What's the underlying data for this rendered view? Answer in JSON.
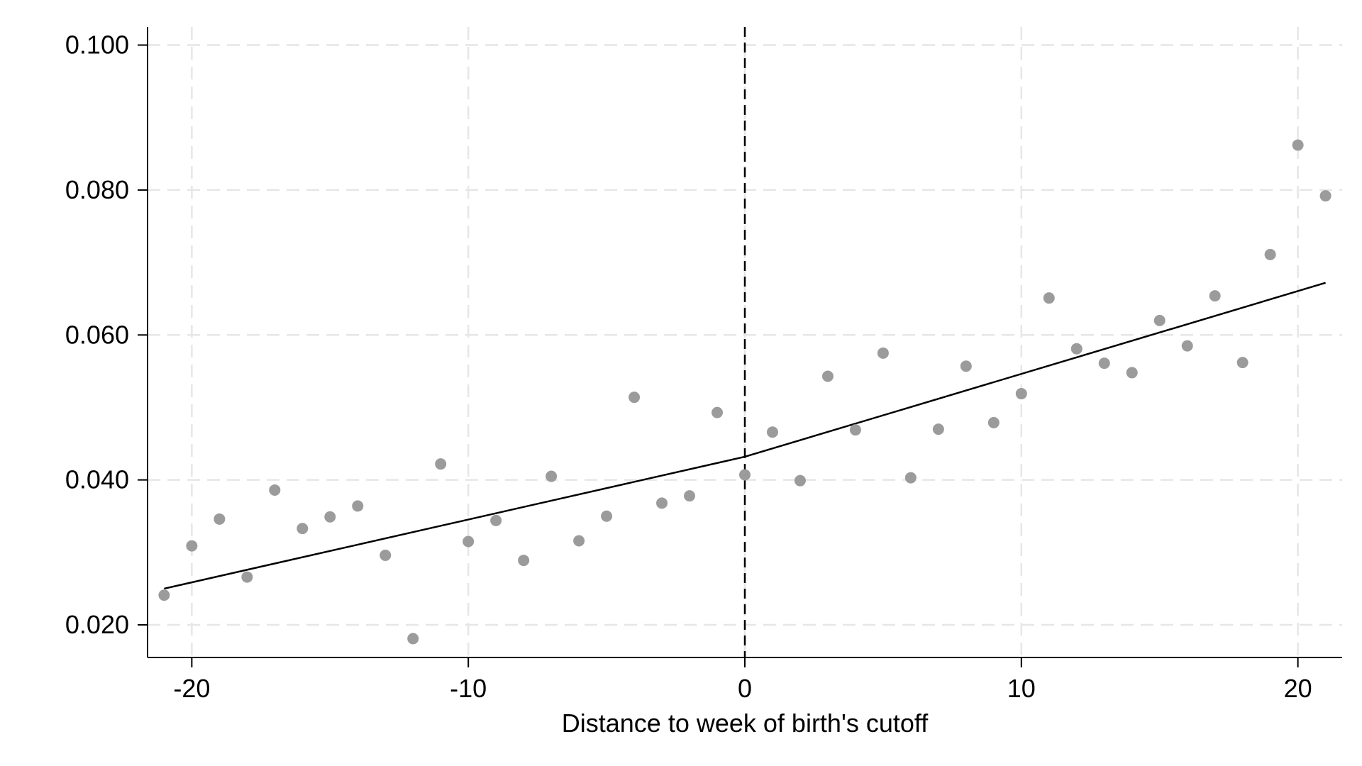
{
  "chart_data": {
    "type": "scatter",
    "title": "",
    "xlabel": "Distance to week of birth's cutoff",
    "ylabel": "",
    "xlim": [
      -21.6,
      21.6
    ],
    "ylim": [
      0.0155,
      0.1025
    ],
    "x_ticks": [
      -20,
      -10,
      0,
      10,
      20
    ],
    "x_tick_labels": [
      "-20",
      "-10",
      "0",
      "10",
      "20"
    ],
    "y_ticks": [
      0.02,
      0.04,
      0.06,
      0.08,
      0.1
    ],
    "y_tick_labels": [
      "0.020",
      "0.040",
      "0.060",
      "0.080",
      "0.100"
    ],
    "grid": true,
    "cutoff_line_x": 0,
    "colors": {
      "points": "#9b9b9b",
      "fit": "#000000",
      "grid": "#e6e6e6",
      "cutoff": "#000000"
    },
    "series": [
      {
        "type": "scatter",
        "x": [
          -21,
          -20,
          -19,
          -18,
          -17,
          -16,
          -15,
          -14,
          -13,
          -12,
          -11,
          -10,
          -9,
          -8,
          -7,
          -6,
          -5,
          -4,
          -3,
          -2,
          -1,
          0,
          1,
          2,
          3,
          4,
          5,
          6,
          7,
          8,
          9,
          10,
          11,
          12,
          13,
          14,
          15,
          16,
          17,
          18,
          19,
          20,
          21
        ],
        "y": [
          0.0241,
          0.0309,
          0.0346,
          0.0266,
          0.0386,
          0.0333,
          0.0349,
          0.0364,
          0.0296,
          0.0181,
          0.0422,
          0.0315,
          0.0344,
          0.0289,
          0.0405,
          0.0316,
          0.035,
          0.0514,
          0.0368,
          0.0378,
          0.0493,
          0.0407,
          0.0466,
          0.0399,
          0.0543,
          0.0469,
          0.0575,
          0.0403,
          0.047,
          0.0557,
          0.0479,
          0.0519,
          0.0651,
          0.0581,
          0.0561,
          0.0548,
          0.062,
          0.0585,
          0.0654,
          0.0562,
          0.0711,
          0.0862,
          0.0792
        ]
      },
      {
        "type": "line",
        "segment": "left",
        "x": [
          -21,
          0
        ],
        "y": [
          0.025,
          0.0432
        ]
      },
      {
        "type": "line",
        "segment": "right",
        "x": [
          0,
          21
        ],
        "y": [
          0.0432,
          0.0672
        ]
      }
    ]
  }
}
